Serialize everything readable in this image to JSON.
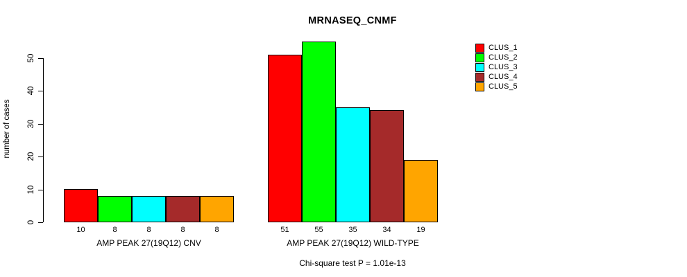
{
  "chart_data": {
    "type": "bar",
    "title": "MRNASEQ_CNMF",
    "ylabel": "number of cases",
    "xlabel": "",
    "ylim": [
      0,
      55
    ],
    "yticks": [
      0,
      10,
      20,
      30,
      40,
      50
    ],
    "grid": false,
    "legend_position": "top-right",
    "categories": [
      "AMP PEAK 27(19Q12) CNV",
      "AMP PEAK 27(19Q12) WILD-TYPE"
    ],
    "series": [
      {
        "name": "CLUS_1",
        "color": "#FF0000",
        "values": [
          10,
          51
        ]
      },
      {
        "name": "CLUS_2",
        "color": "#00FF00",
        "values": [
          8,
          55
        ]
      },
      {
        "name": "CLUS_3",
        "color": "#00FFFF",
        "values": [
          8,
          35
        ]
      },
      {
        "name": "CLUS_4",
        "color": "#A52A2A",
        "values": [
          8,
          34
        ]
      },
      {
        "name": "CLUS_5",
        "color": "#FFA500",
        "values": [
          8,
          19
        ]
      }
    ],
    "show_bar_value_labels": true,
    "footnote": "Chi-square test P = 1.01e-13"
  }
}
